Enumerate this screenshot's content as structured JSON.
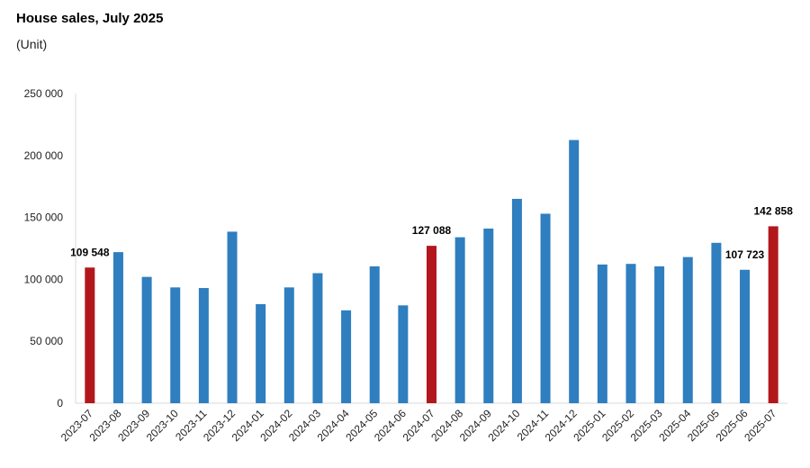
{
  "title": "House sales, July 2025",
  "subtitle": "(Unit)",
  "colors": {
    "bar": "#2f7ebf",
    "highlight": "#b2171c",
    "axis": "#d9d9d9"
  },
  "chart_data": {
    "type": "bar",
    "title": "House sales, July 2025",
    "ylabel": "(Unit)",
    "xlabel": "",
    "ylim": [
      0,
      250000
    ],
    "yticks": [
      0,
      50000,
      100000,
      150000,
      200000,
      250000
    ],
    "ytick_labels": [
      "0",
      "50 000",
      "100 000",
      "150 000",
      "200 000",
      "250 000"
    ],
    "grid": false,
    "categories": [
      "2023-07",
      "2023-08",
      "2023-09",
      "2023-10",
      "2023-11",
      "2023-12",
      "2024-01",
      "2024-02",
      "2024-03",
      "2024-04",
      "2024-05",
      "2024-06",
      "2024-07",
      "2024-08",
      "2024-09",
      "2024-10",
      "2024-11",
      "2024-12",
      "2025-01",
      "2025-02",
      "2025-03",
      "2025-04",
      "2025-05",
      "2025-06",
      "2025-07"
    ],
    "values": [
      109548,
      122000,
      102000,
      93500,
      93000,
      138500,
      80000,
      93500,
      105000,
      75000,
      110500,
      79000,
      127088,
      134000,
      141000,
      165000,
      153000,
      212500,
      112000,
      112500,
      110500,
      118000,
      129500,
      107723,
      142858
    ],
    "highlighted": [
      "2023-07",
      "2024-07",
      "2025-07"
    ],
    "data_labels": [
      {
        "category": "2023-07",
        "text": "109 548"
      },
      {
        "category": "2024-07",
        "text": "127 088"
      },
      {
        "category": "2025-06",
        "text": "107 723"
      },
      {
        "category": "2025-07",
        "text": "142 858"
      }
    ]
  }
}
